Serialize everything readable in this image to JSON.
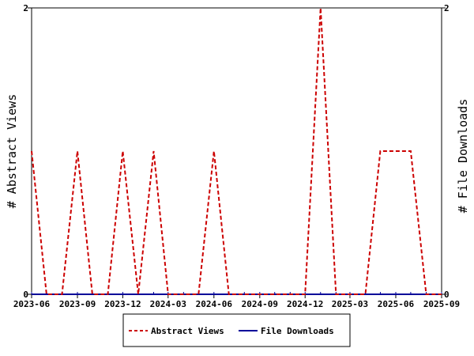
{
  "chart_data": {
    "type": "line",
    "ylabel_left": "# Abstract Views",
    "ylabel_right": "# File Downloads",
    "xlim": [
      "2023-06-01",
      "2025-09-01"
    ],
    "ylim": [
      0,
      2
    ],
    "y_ticks": [
      "0",
      "2"
    ],
    "x_ticks": [
      {
        "date": "2023-06-01",
        "label": "2023-06"
      },
      {
        "date": "2023-09-01",
        "label": "2023-09"
      },
      {
        "date": "2023-12-01",
        "label": "2023-12"
      },
      {
        "date": "2024-03-01",
        "label": "2024-03"
      },
      {
        "date": "2024-06-01",
        "label": "2024-06"
      },
      {
        "date": "2024-09-01",
        "label": "2024-09"
      },
      {
        "date": "2024-12-01",
        "label": "2024-12"
      },
      {
        "date": "2025-03-01",
        "label": "2025-03"
      },
      {
        "date": "2025-06-01",
        "label": "2025-06"
      },
      {
        "date": "2025-09-01",
        "label": "2025-09"
      }
    ],
    "x": [
      "2023-06-01",
      "2023-07-01",
      "2023-08-01",
      "2023-09-01",
      "2023-10-01",
      "2023-11-01",
      "2023-12-01",
      "2024-01-01",
      "2024-02-01",
      "2024-03-01",
      "2024-04-01",
      "2024-05-01",
      "2024-06-01",
      "2024-07-01",
      "2024-08-01",
      "2024-09-01",
      "2024-10-01",
      "2024-11-01",
      "2024-12-01",
      "2025-01-01",
      "2025-02-01",
      "2025-03-01",
      "2025-04-01",
      "2025-05-01",
      "2025-06-01",
      "2025-07-01",
      "2025-08-01",
      "2025-09-01"
    ],
    "series": [
      {
        "name": "Abstract Views",
        "color": "#cc0000",
        "dash": "dashed",
        "values": [
          1,
          0,
          0,
          1,
          0,
          0,
          1,
          0,
          1,
          0,
          0,
          0,
          1,
          0,
          0,
          0,
          0,
          0,
          0,
          2,
          0,
          0,
          0,
          1,
          1,
          1,
          0,
          0
        ]
      },
      {
        "name": "File Downloads",
        "color": "#000099",
        "dash": "solid",
        "values": [
          0,
          0,
          0,
          0,
          0,
          0,
          0,
          0,
          0,
          0,
          0,
          0,
          0,
          0,
          0,
          0,
          0,
          0,
          0,
          0,
          0,
          0,
          0,
          0,
          0,
          0,
          0,
          0
        ]
      }
    ],
    "legend_position": "bottom",
    "grid": false
  }
}
